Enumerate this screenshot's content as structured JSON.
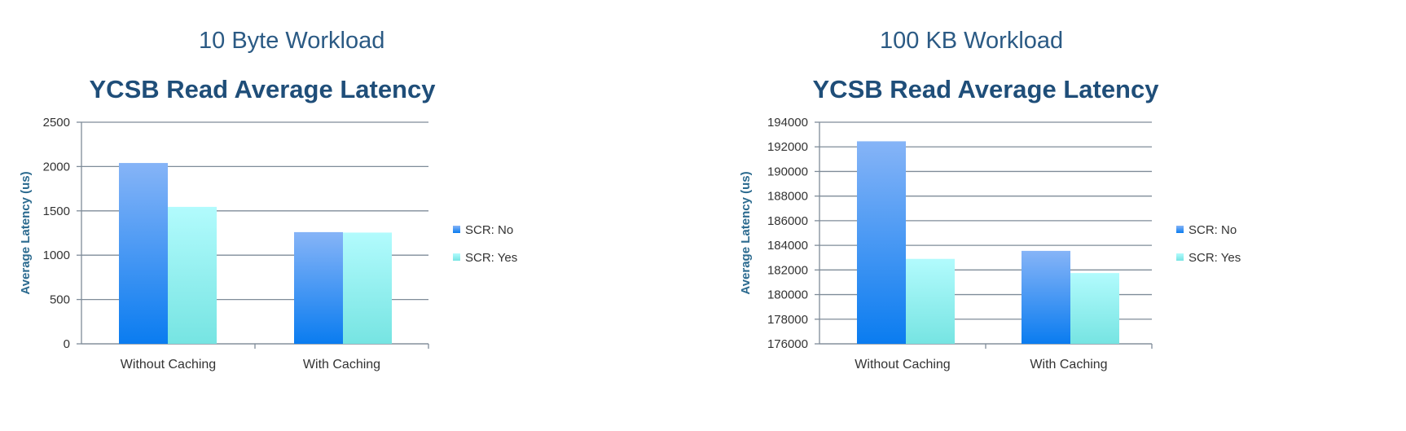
{
  "panels": [
    {
      "workload_title": "10 Byte Workload"
    },
    {
      "workload_title": "100 KB Workload"
    }
  ],
  "colors": {
    "series_no_top": "#86b4f7",
    "series_no_bottom": "#0a7cf0",
    "series_yes_top": "#b2fbfd",
    "series_yes_bottom": "#76e4e2",
    "gridline": "#7f8c99",
    "axis": "#7f8c99"
  },
  "chart_data": [
    {
      "type": "bar",
      "title": "YCSB Read Average Latency",
      "ylabel": "Average Latency (us)",
      "categories": [
        "Without Caching",
        "With Caching"
      ],
      "series": [
        {
          "name": "SCR: No",
          "values": [
            2040,
            1260
          ]
        },
        {
          "name": "SCR: Yes",
          "values": [
            1545,
            1255
          ]
        }
      ],
      "ylim": [
        0,
        2500
      ],
      "yticks": [
        0,
        500,
        1000,
        1500,
        2000,
        2500
      ],
      "grid": true,
      "legend": "right"
    },
    {
      "type": "bar",
      "title": "YCSB Read Average Latency",
      "ylabel": "Average Latency (us)",
      "categories": [
        "Without Caching",
        "With Caching"
      ],
      "series": [
        {
          "name": "SCR: No",
          "values": [
            192450,
            183550
          ]
        },
        {
          "name": "SCR: Yes",
          "values": [
            182900,
            181750
          ]
        }
      ],
      "ylim": [
        176000,
        194000
      ],
      "yticks": [
        176000,
        178000,
        180000,
        182000,
        184000,
        186000,
        188000,
        190000,
        192000,
        194000
      ],
      "grid": true,
      "legend": "right"
    }
  ]
}
